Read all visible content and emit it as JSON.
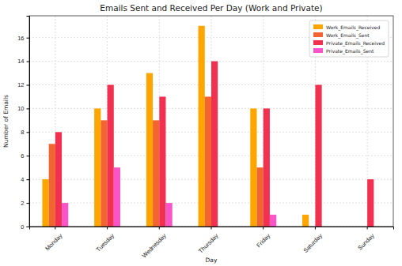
{
  "chart_data": {
    "type": "bar",
    "title": "Emails Sent and Received Per Day (Work and Private)",
    "x_label": "Day",
    "y_label": "Number of Emails",
    "categories": [
      "Monday",
      "Tuesday",
      "Wednesday",
      "Thursday",
      "Friday",
      "Saturday",
      "Sunday"
    ],
    "series": [
      {
        "name": "Work_Emails_Received",
        "color": "#ffa500",
        "values": [
          4,
          10,
          13,
          17,
          10,
          1,
          0
        ]
      },
      {
        "name": "Work_Emails_Sent",
        "color": "#f26531",
        "values": [
          7,
          9,
          9,
          11,
          5,
          0,
          0
        ]
      },
      {
        "name": "Private_Emails_Received",
        "color": "#f2304f",
        "values": [
          8,
          12,
          11,
          14,
          10,
          12,
          4
        ]
      },
      {
        "name": "Private_Emails_Sent",
        "color": "#fa55c8",
        "values": [
          2,
          5,
          2,
          0,
          1,
          0,
          0
        ]
      }
    ],
    "ylim": [
      0,
      17.85
    ],
    "yticks": [
      0,
      2,
      4,
      6,
      8,
      10,
      12,
      14,
      16
    ],
    "grid": true,
    "legend": "upper right"
  }
}
